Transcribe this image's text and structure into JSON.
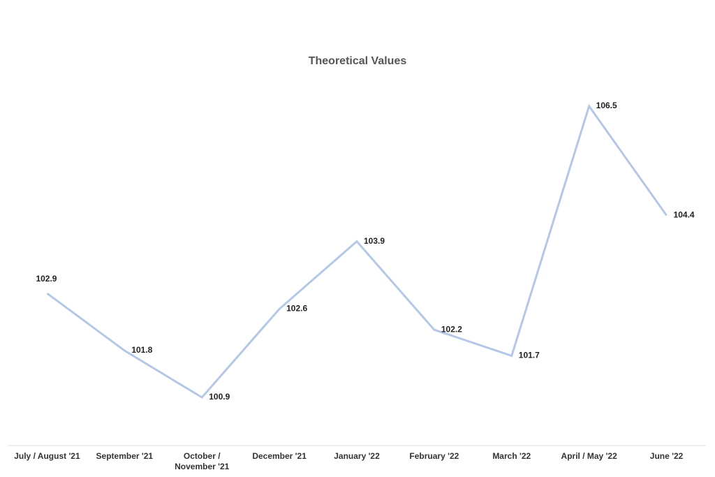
{
  "chart_data": {
    "type": "line",
    "title": "Theoretical Values",
    "categories": [
      "July / August '21",
      "September '21",
      "October / November '21",
      "December '21",
      "January '22",
      "February '22",
      "March '22",
      "April / May '22",
      "June '22"
    ],
    "series": [
      {
        "name": "Theoretical Values",
        "color": "#b4c7e7",
        "values": [
          102.9,
          101.8,
          100.9,
          102.6,
          103.9,
          102.2,
          101.7,
          106.5,
          104.4
        ]
      }
    ]
  }
}
